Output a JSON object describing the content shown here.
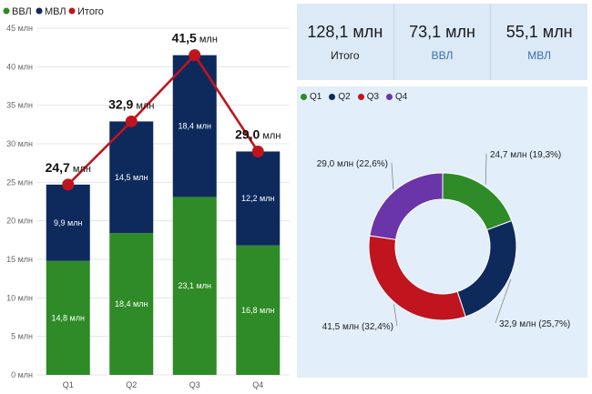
{
  "chart_data": [
    {
      "type": "bar",
      "subtype": "stacked-with-line",
      "categories": [
        "Q1",
        "Q2",
        "Q3",
        "Q4"
      ],
      "series": [
        {
          "name": "ВВЛ",
          "values": [
            14.8,
            18.4,
            23.1,
            16.8
          ],
          "labels": [
            "14,8 млн",
            "18,4 млн",
            "23,1 млн",
            "16,8 млн"
          ],
          "color": "#2e8b27"
        },
        {
          "name": "МВЛ",
          "values": [
            9.9,
            14.5,
            18.4,
            12.2
          ],
          "labels": [
            "9,9 млн",
            "14,5 млн",
            "18,4 млн",
            "12,2 млн"
          ],
          "color": "#0e2a5c"
        },
        {
          "name": "Итого",
          "type": "line",
          "values": [
            24.7,
            32.9,
            41.5,
            29.0
          ],
          "labels": [
            "24,7",
            "32,9",
            "41,5",
            "29,0"
          ],
          "color": "#c0141e"
        }
      ],
      "total_label_suffix": "млн",
      "ylim": [
        0,
        45
      ],
      "yticks": [
        0,
        5,
        10,
        15,
        20,
        25,
        30,
        35,
        40,
        45
      ],
      "ytick_labels": [
        "0 млн",
        "5 млн",
        "10 млн",
        "15 млн",
        "20 млн",
        "25 млн",
        "30 млн",
        "35 млн",
        "40 млн",
        "45 млн"
      ],
      "grid": true,
      "legend": "top-left"
    },
    {
      "type": "pie",
      "subtype": "donut",
      "categories": [
        "Q1",
        "Q2",
        "Q3",
        "Q4"
      ],
      "values": [
        24.7,
        32.9,
        41.5,
        29.0
      ],
      "labels": [
        "24,7 млн (19,3%)",
        "32,9 млн (25,7%)",
        "41,5 млн (32,4%)",
        "29,0 млн (22,6%)"
      ],
      "colors": [
        "#2e8b27",
        "#0e2a5c",
        "#c0141e",
        "#6a35a8"
      ],
      "legend": "top-left"
    }
  ],
  "kpis": [
    {
      "value": "128,1 млн",
      "label": "Итого"
    },
    {
      "value": "73,1 млн",
      "label": "ВВЛ"
    },
    {
      "value": "55,1 млн",
      "label": "МВЛ"
    }
  ]
}
